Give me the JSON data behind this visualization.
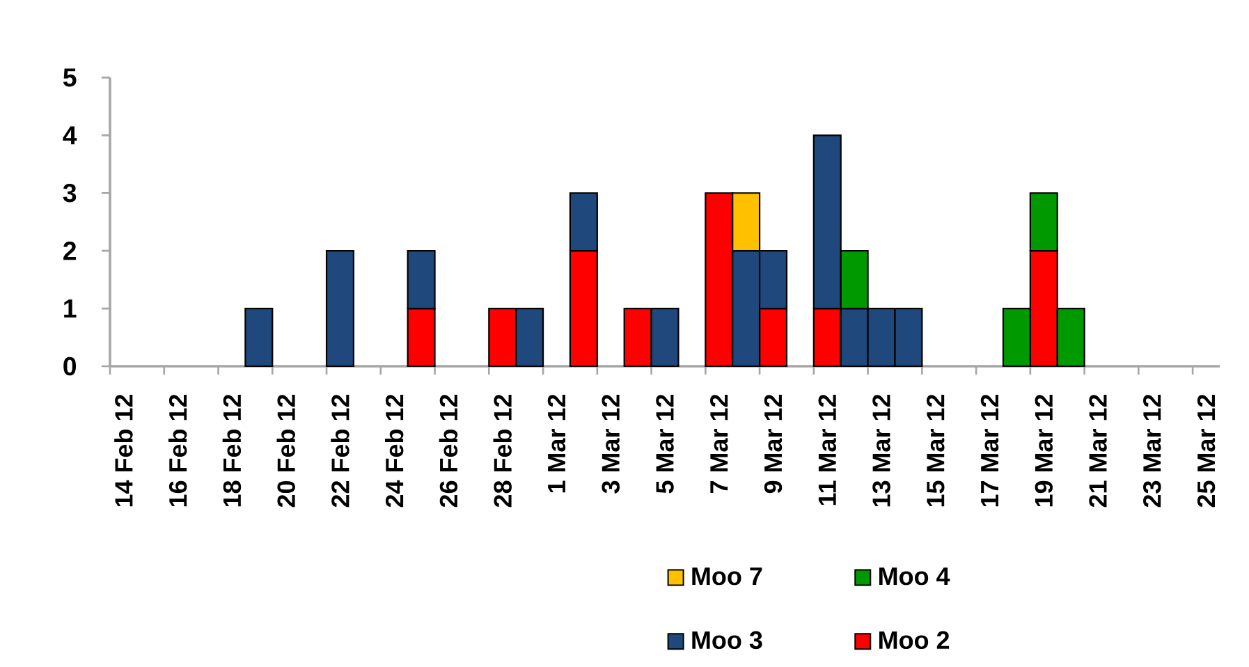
{
  "chart_data": {
    "type": "bar",
    "stacked": true,
    "categories": [
      "14 Feb 12",
      null,
      "16 Feb 12",
      null,
      "18 Feb 12",
      null,
      "20 Feb 12",
      null,
      "22 Feb 12",
      null,
      "24 Feb 12",
      null,
      "26 Feb 12",
      null,
      "28 Feb 12",
      null,
      "1 Mar 12",
      null,
      "3 Mar 12",
      null,
      "5 Mar 12",
      null,
      "7 Mar 12",
      null,
      "9 Mar 12",
      null,
      "11 Mar 12",
      null,
      "13 Mar 12",
      null,
      "15 Mar 12",
      null,
      "17 Mar 12",
      null,
      "19 Mar 12",
      null,
      "21 Mar 12",
      null,
      "23 Mar 12",
      null,
      "25 Mar 12"
    ],
    "series": [
      {
        "name": "Moo 2",
        "color": "#ff0000",
        "values": [
          0,
          0,
          0,
          0,
          0,
          0,
          0,
          0,
          0,
          0,
          0,
          1,
          0,
          0,
          1,
          0,
          0,
          2,
          0,
          1,
          0,
          0,
          3,
          0,
          1,
          0,
          1,
          0,
          0,
          0,
          0,
          0,
          0,
          0,
          2,
          0,
          0,
          0,
          0,
          0,
          0
        ]
      },
      {
        "name": "Moo 3",
        "color": "#1f497d",
        "values": [
          0,
          0,
          0,
          0,
          0,
          1,
          0,
          0,
          2,
          0,
          0,
          1,
          0,
          0,
          0,
          1,
          0,
          1,
          0,
          0,
          1,
          0,
          0,
          2,
          1,
          0,
          3,
          1,
          1,
          1,
          0,
          0,
          0,
          0,
          0,
          0,
          0,
          0,
          0,
          0,
          0
        ]
      },
      {
        "name": "Moo 4",
        "color": "#009900",
        "values": [
          0,
          0,
          0,
          0,
          0,
          0,
          0,
          0,
          0,
          0,
          0,
          0,
          0,
          0,
          0,
          0,
          0,
          0,
          0,
          0,
          0,
          0,
          0,
          0,
          0,
          0,
          0,
          1,
          0,
          0,
          0,
          0,
          0,
          1,
          1,
          1,
          0,
          0,
          0,
          0,
          0
        ]
      },
      {
        "name": "Moo 7",
        "color": "#ffc000",
        "values": [
          0,
          0,
          0,
          0,
          0,
          0,
          0,
          0,
          0,
          0,
          0,
          0,
          0,
          0,
          0,
          0,
          0,
          0,
          0,
          0,
          0,
          0,
          0,
          1,
          0,
          0,
          0,
          0,
          0,
          0,
          0,
          0,
          0,
          0,
          0,
          0,
          0,
          0,
          0,
          0,
          0
        ]
      }
    ],
    "ylim": [
      0,
      5
    ],
    "yticks": [
      0,
      1,
      2,
      3,
      4,
      5
    ],
    "legend": "bottom"
  }
}
